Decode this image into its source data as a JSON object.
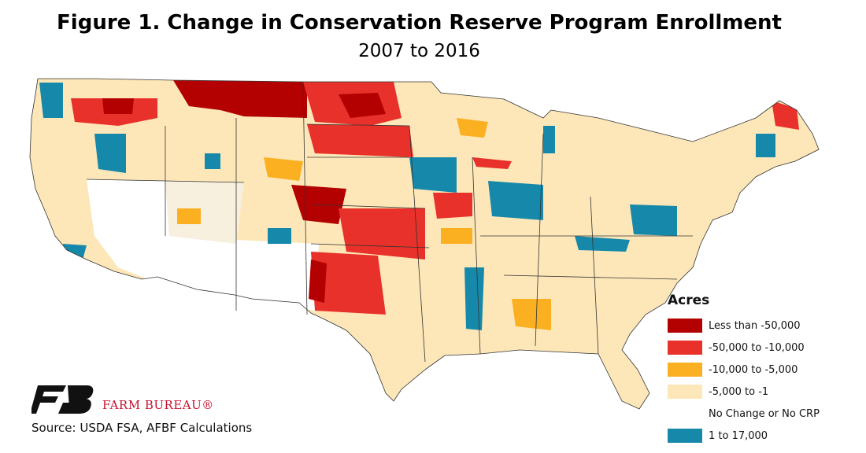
{
  "title": "Figure 1. Change in Conservation Reserve Program Enrollment",
  "subtitle": "2007 to 2016",
  "legend": {
    "title": "Acres",
    "items": [
      {
        "label": "Less than -50,000",
        "color": "#b30000"
      },
      {
        "label": "-50,000 to -10,000",
        "color": "#e8312a"
      },
      {
        "label": "-10,000 to -5,000",
        "color": "#fbb022"
      },
      {
        "label": "-5,000 to -1",
        "color": "#fde7b8"
      },
      {
        "label": "No Change or No CRP",
        "color": "#ffffff"
      },
      {
        "label": "1 to 17,000",
        "color": "#1689aa"
      }
    ]
  },
  "logo": {
    "text": "FARM BUREAU®",
    "color": "#c8102e",
    "icon": "farm-bureau-fb-logo"
  },
  "source": "Source: USDA FSA, AFBF Calculations"
}
